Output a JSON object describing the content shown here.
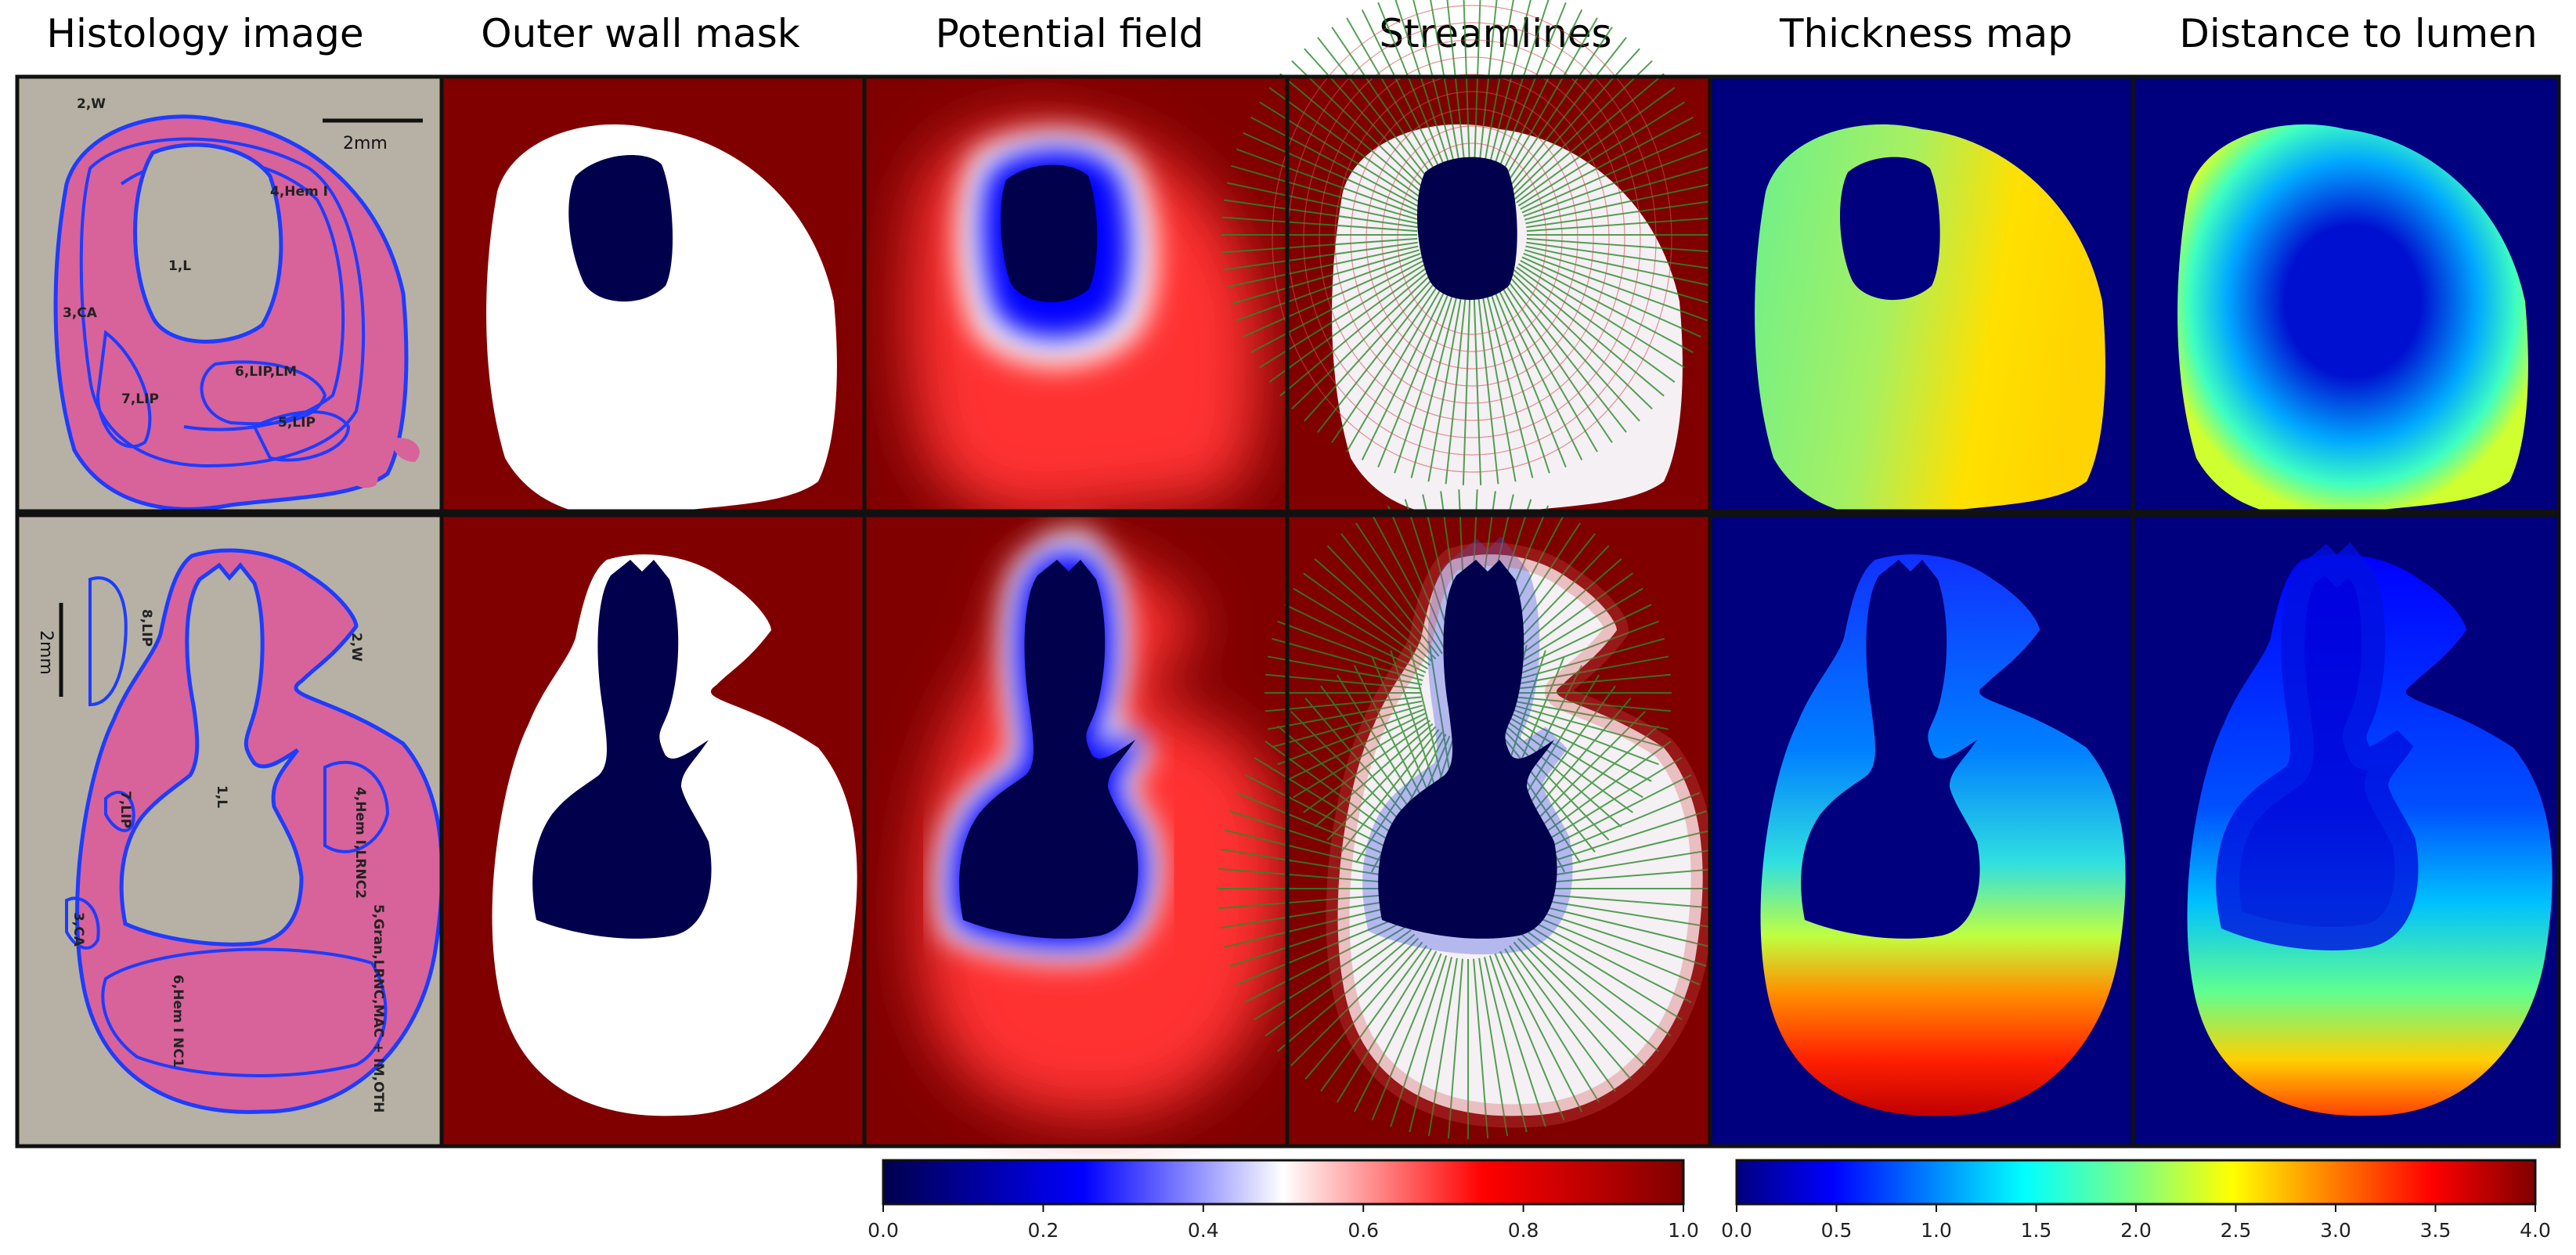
{
  "columns": [
    {
      "title": "Histology image"
    },
    {
      "title": "Outer wall mask"
    },
    {
      "title": "Potential field"
    },
    {
      "title": "Streamlines"
    },
    {
      "title": "Thickness map"
    },
    {
      "title": "Distance to lumen"
    }
  ],
  "histology_top": {
    "scale_label": "2mm",
    "labels": [
      "2,W",
      "4,Hem I",
      "1,L",
      "3,CA",
      "6,LIP,LM",
      "7,LIP",
      "5,LIP"
    ]
  },
  "histology_bottom": {
    "scale_label": "2mm",
    "labels": [
      "8,LIP",
      "2,W",
      "1,L",
      "7,LIP",
      "4,Hem I,LRNC2",
      "3,CA",
      "5,Gran,LRNC,MAC + IM,OTH",
      "6,Hem I NC1"
    ]
  },
  "colorbar_left": {
    "ticks": [
      "0.0",
      "0.2",
      "0.4",
      "0.6",
      "0.8",
      "1.0"
    ],
    "colormap": [
      "#00004c",
      "#0000ff",
      "#ffffff",
      "#ff0000",
      "#800000"
    ]
  },
  "colorbar_right": {
    "ticks": [
      "0.0",
      "0.5",
      "1.0",
      "1.5",
      "2.0",
      "2.5",
      "3.0",
      "3.5",
      "4.0"
    ],
    "colormap": [
      "#00007f",
      "#0000ff",
      "#007fff",
      "#00ffff",
      "#7fff7f",
      "#ffff00",
      "#ff7f00",
      "#ff0000",
      "#7f0000"
    ]
  },
  "colors": {
    "tissue": "#d8629a",
    "contour": "#1e3cff",
    "mask_bg": "#800000",
    "jet_bg": "#00007f",
    "lumen": "#00004c"
  }
}
